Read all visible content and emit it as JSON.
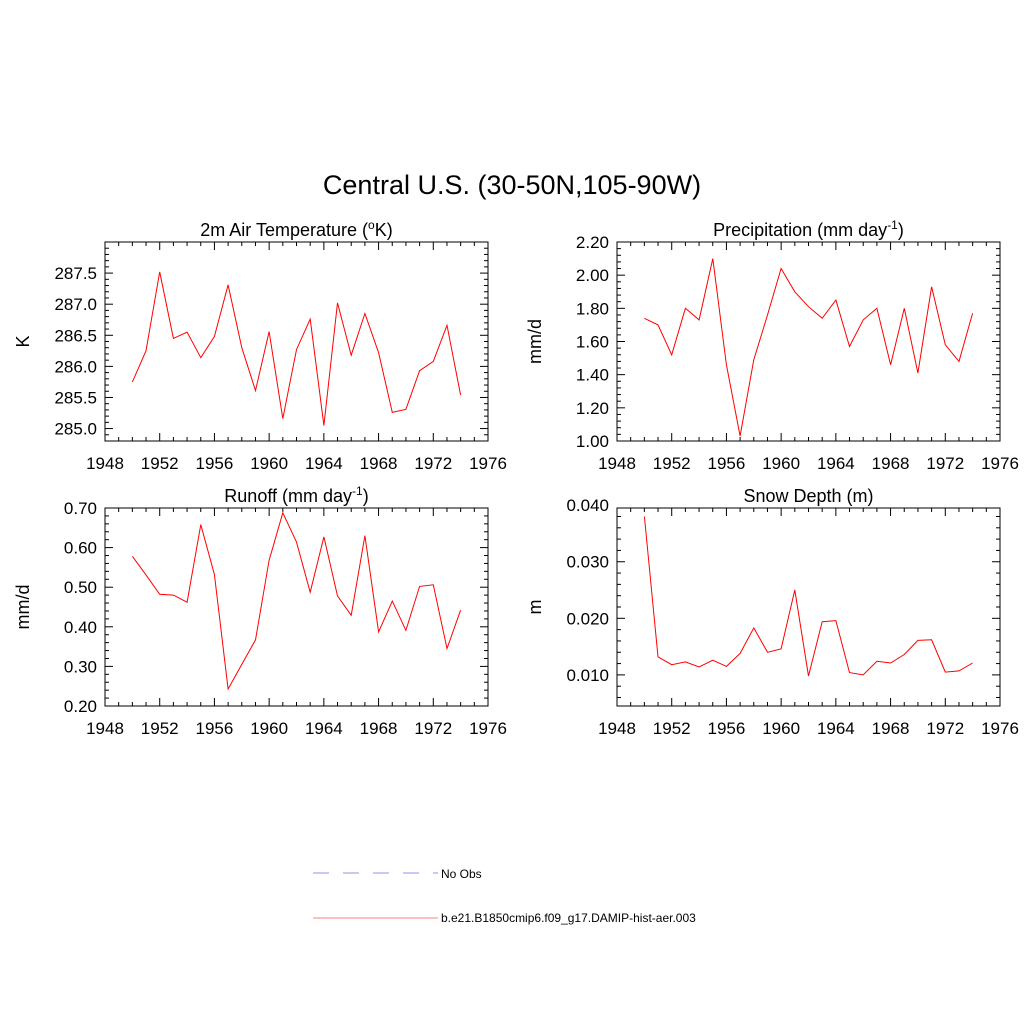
{
  "figure": {
    "title": "Central U.S. (30-50N,105-90W)",
    "legend": [
      {
        "label": "No Obs",
        "color": "#a8a8f0",
        "style": "dashed"
      },
      {
        "label": "b.e21.B1850cmip6.f09_g17.DAMIP-hist-aer.003",
        "color": "#ff9999",
        "style": "solid"
      }
    ]
  },
  "chart_data": [
    {
      "type": "line",
      "title": "2m Air Temperature (°K)",
      "title_base": "2m Air Temperature (",
      "title_sup": "o",
      "title_tail": "K)",
      "ylabel": "K",
      "xlim": [
        1948,
        1976
      ],
      "ylim": [
        284.8,
        288.0
      ],
      "xticks": [
        1948,
        1952,
        1956,
        1960,
        1964,
        1968,
        1972,
        1976
      ],
      "yticks": [
        285.0,
        285.5,
        286.0,
        286.5,
        287.0,
        287.5
      ],
      "ytick_labels": [
        "285.0",
        "285.5",
        "286.0",
        "286.5",
        "287.0",
        "287.5"
      ],
      "color": "#ff0000",
      "x": [
        1950,
        1951,
        1952,
        1953,
        1954,
        1955,
        1956,
        1957,
        1958,
        1959,
        1960,
        1961,
        1962,
        1963,
        1964,
        1965,
        1966,
        1967,
        1968,
        1969,
        1970,
        1971,
        1972,
        1973,
        1974
      ],
      "y": [
        285.75,
        286.25,
        287.52,
        286.45,
        286.55,
        286.14,
        286.48,
        287.31,
        286.3,
        285.61,
        286.56,
        285.16,
        286.27,
        286.76,
        285.05,
        287.02,
        286.18,
        286.85,
        286.22,
        285.26,
        285.31,
        285.93,
        286.08,
        286.66,
        285.54
      ]
    },
    {
      "type": "line",
      "title": "Precipitation (mm day-1)",
      "title_base": "Precipitation (mm day",
      "title_sup": "-1",
      "title_tail": ")",
      "ylabel": "mm/d",
      "xlim": [
        1948,
        1976
      ],
      "ylim": [
        1.0,
        2.2
      ],
      "xticks": [
        1948,
        1952,
        1956,
        1960,
        1964,
        1968,
        1972,
        1976
      ],
      "yticks": [
        1.0,
        1.2,
        1.4,
        1.6,
        1.8,
        2.0,
        2.2
      ],
      "ytick_labels": [
        "1.00",
        "1.20",
        "1.40",
        "1.60",
        "1.80",
        "2.00",
        "2.20"
      ],
      "color": "#ff0000",
      "x": [
        1950,
        1951,
        1952,
        1953,
        1954,
        1955,
        1956,
        1957,
        1958,
        1959,
        1960,
        1961,
        1962,
        1963,
        1964,
        1965,
        1966,
        1967,
        1968,
        1969,
        1970,
        1971,
        1972,
        1973,
        1974
      ],
      "y": [
        1.74,
        1.7,
        1.52,
        1.8,
        1.73,
        2.1,
        1.46,
        1.03,
        1.49,
        1.76,
        2.04,
        1.9,
        1.81,
        1.74,
        1.85,
        1.57,
        1.73,
        1.8,
        1.46,
        1.8,
        1.41,
        1.93,
        1.58,
        1.48,
        1.77
      ]
    },
    {
      "type": "line",
      "title": "Runoff (mm day-1)",
      "title_base": "Runoff (mm day",
      "title_sup": "-1",
      "title_tail": ")",
      "ylabel": "mm/d",
      "xlim": [
        1948,
        1976
      ],
      "ylim": [
        0.2,
        0.7
      ],
      "xticks": [
        1948,
        1952,
        1956,
        1960,
        1964,
        1968,
        1972,
        1976
      ],
      "yticks": [
        0.2,
        0.3,
        0.4,
        0.5,
        0.6,
        0.7
      ],
      "ytick_labels": [
        "0.20",
        "0.30",
        "0.40",
        "0.50",
        "0.60",
        "0.70"
      ],
      "color": "#ff0000",
      "x": [
        1950,
        1951,
        1952,
        1953,
        1954,
        1955,
        1956,
        1957,
        1958,
        1959,
        1960,
        1961,
        1962,
        1963,
        1964,
        1965,
        1966,
        1967,
        1968,
        1969,
        1970,
        1971,
        1972,
        1973,
        1974
      ],
      "y": [
        0.578,
        0.531,
        0.482,
        0.48,
        0.462,
        0.658,
        0.532,
        0.243,
        0.305,
        0.367,
        0.568,
        0.688,
        0.614,
        0.487,
        0.627,
        0.478,
        0.429,
        0.63,
        0.387,
        0.465,
        0.391,
        0.502,
        0.506,
        0.345,
        0.442
      ]
    },
    {
      "type": "line",
      "title": "Snow Depth (m)",
      "title_base": "Snow Depth (m)",
      "title_sup": "",
      "title_tail": "",
      "ylabel": "m",
      "xlim": [
        1948,
        1976
      ],
      "ylim": [
        0.0045,
        0.0395
      ],
      "xticks": [
        1948,
        1952,
        1956,
        1960,
        1964,
        1968,
        1972,
        1976
      ],
      "yticks": [
        0.01,
        0.02,
        0.03,
        0.04
      ],
      "ytick_labels": [
        "0.010",
        "0.020",
        "0.030",
        "0.040"
      ],
      "color": "#ff0000",
      "x": [
        1950,
        1951,
        1952,
        1953,
        1954,
        1955,
        1956,
        1957,
        1958,
        1959,
        1960,
        1961,
        1962,
        1963,
        1964,
        1965,
        1966,
        1967,
        1968,
        1969,
        1970,
        1971,
        1972,
        1973,
        1974
      ],
      "y": [
        0.038,
        0.0132,
        0.0118,
        0.0123,
        0.0114,
        0.0126,
        0.0115,
        0.0138,
        0.0183,
        0.014,
        0.0146,
        0.025,
        0.0098,
        0.0194,
        0.0196,
        0.0104,
        0.01,
        0.0124,
        0.0121,
        0.0136,
        0.0161,
        0.0162,
        0.0105,
        0.0107,
        0.0121
      ]
    }
  ]
}
